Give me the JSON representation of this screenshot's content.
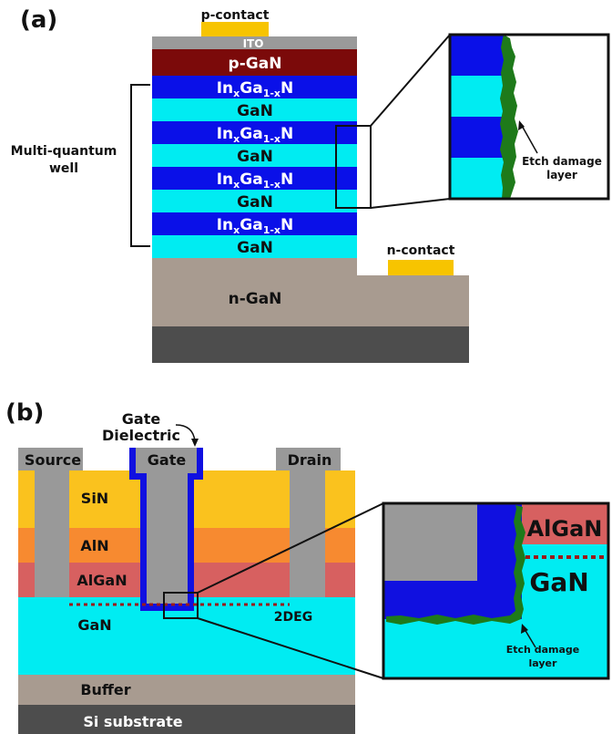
{
  "panel_a": {
    "panel_label": "(a)",
    "p_contact": "p-contact",
    "ito": "ITO",
    "p_gan": "p-GaN",
    "ingan_base": "In",
    "ingan_sub_x": "x",
    "ingan_mid": "Ga",
    "ingan_sub_1x": "1-x",
    "ingan_end": "N",
    "gan": "GaN",
    "mqw_line1": "Multi-quantum",
    "mqw_line2": "well",
    "n_contact": "n-contact",
    "n_gan": "n-GaN",
    "etch_line1": "Etch damage",
    "etch_line2": "layer"
  },
  "panel_b": {
    "panel_label": "(b)",
    "gate_dielectric_line1": "Gate",
    "gate_dielectric_line2": "Dielectric",
    "source": "Source",
    "gate": "Gate",
    "drain": "Drain",
    "sin": "SiN",
    "aln": "AlN",
    "algan": "AlGaN",
    "gan": "GaN",
    "twodeg": "2DEG",
    "buffer": "Buffer",
    "si_substrate": "Si substrate",
    "inset_algan": "AlGaN",
    "inset_gan": "GaN",
    "etch_line1": "Etch damage",
    "etch_line2": "layer"
  },
  "colors": {
    "ingan": "#0a10e8",
    "gan": "#00ecf2",
    "p_gan": "#7b0a0a",
    "ito": "#9a9a9a",
    "contact": "#f7c400",
    "n_gan": "#a89b90",
    "substrate": "#4d4d4d",
    "sin": "#fac21e",
    "aln": "#f78a30",
    "algan": "#d76060",
    "metal": "#999999",
    "dielectric": "#1010e0",
    "damage": "#1e7a1a"
  }
}
